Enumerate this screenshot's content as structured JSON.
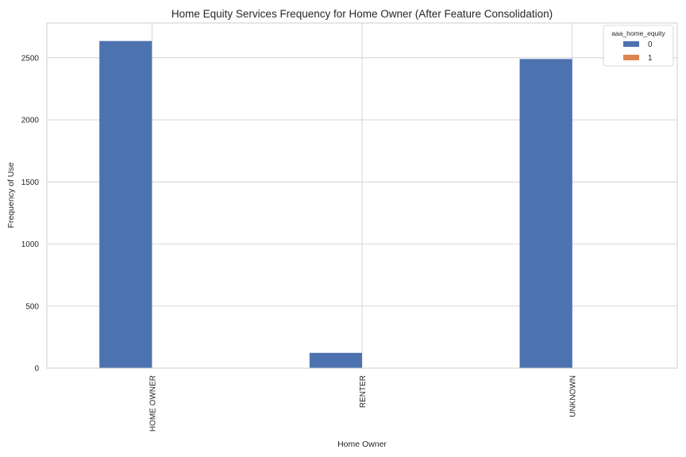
{
  "chart_data": {
    "type": "bar",
    "title": "Home Equity Services Frequency for Home Owner (After Feature Consolidation)",
    "xlabel": "Home Owner",
    "ylabel": "Frequency of Use",
    "categories": [
      "HOME OWNER",
      "RENTER",
      "UNKNOWN"
    ],
    "series": [
      {
        "name": "0",
        "values": [
          2635,
          123,
          2490
        ],
        "color": "#4c72b0"
      },
      {
        "name": "1",
        "values": [
          0,
          0,
          0
        ],
        "color": "#dd8452"
      }
    ],
    "ylim": [
      0,
      2780
    ],
    "yticks": [
      0,
      500,
      1000,
      1500,
      2000,
      2500
    ],
    "grid": true,
    "legend": {
      "title": "aaa_home_equity",
      "placement": "top-right"
    }
  }
}
